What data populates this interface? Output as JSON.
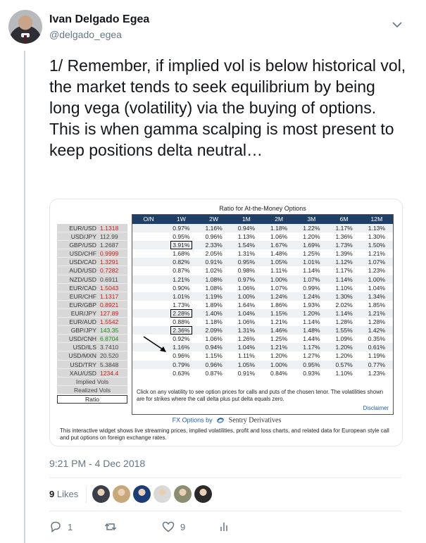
{
  "author": {
    "name": "Ivan Delgado Egea",
    "handle": "@delgado_egea"
  },
  "tweet_text": "1/ Remember, if implied vol is below historical vol, the market tends to seek equilibrium by being long vega (volatility) via the buying of options. This is when gamma scalping is most present to keep positions delta neutral…",
  "widget": {
    "title": "Ratio for At-the-Money Options",
    "headers": [
      "O/N",
      "1W",
      "2W",
      "1M",
      "2M",
      "3M",
      "6M",
      "12M"
    ],
    "pairs": [
      {
        "pair": "EUR/USD",
        "price": "1.1318",
        "color": "red"
      },
      {
        "pair": "USD/JPY",
        "price": "112.99",
        "color": "gray"
      },
      {
        "pair": "GBP/USD",
        "price": "1.2687",
        "color": "gray"
      },
      {
        "pair": "USD/CHF",
        "price": "0.9999",
        "color": "red"
      },
      {
        "pair": "USD/CAD",
        "price": "1.3291",
        "color": "red"
      },
      {
        "pair": "AUD/USD",
        "price": "0.7282",
        "color": "red"
      },
      {
        "pair": "NZD/USD",
        "price": "0.6911",
        "color": "gray"
      },
      {
        "pair": "EUR/CAD",
        "price": "1.5043",
        "color": "red"
      },
      {
        "pair": "EUR/CHF",
        "price": "1.1317",
        "color": "red"
      },
      {
        "pair": "EUR/GBP",
        "price": "0.8921",
        "color": "red"
      },
      {
        "pair": "EUR/JPY",
        "price": "127.89",
        "color": "red"
      },
      {
        "pair": "EUR/AUD",
        "price": "1.5542",
        "color": "red"
      },
      {
        "pair": "GBP/JPY",
        "price": "143.35",
        "color": "grn"
      },
      {
        "pair": "USD/CNH",
        "price": "6.8704",
        "color": "grn"
      },
      {
        "pair": "USD/ILS",
        "price": "3.7410",
        "color": "gray"
      },
      {
        "pair": "USD/MXN",
        "price": "20.520",
        "color": "gray"
      },
      {
        "pair": "USD/TRY",
        "price": "5.3848",
        "color": "gray"
      },
      {
        "pair": "XAU/USD",
        "price": "1234.4",
        "color": "red"
      }
    ],
    "rows": [
      [
        "",
        "0.97%",
        "1.16%",
        "0.94%",
        "1.18%",
        "1.22%",
        "1.17%",
        "1.13%"
      ],
      [
        "",
        "0.95%",
        "0.96%",
        "1.13%",
        "1.06%",
        "1.20%",
        "1.36%",
        "1.30%"
      ],
      [
        "",
        "3.91%",
        "2.33%",
        "1.54%",
        "1.67%",
        "1.69%",
        "1.73%",
        "1.50%"
      ],
      [
        "",
        "1.68%",
        "2.05%",
        "1.31%",
        "1.48%",
        "1.25%",
        "1.39%",
        "1.21%"
      ],
      [
        "",
        "0.82%",
        "0.91%",
        "0.95%",
        "1.05%",
        "1.01%",
        "1.12%",
        "1.07%"
      ],
      [
        "",
        "0.87%",
        "1.02%",
        "0.98%",
        "1.11%",
        "1.14%",
        "1.17%",
        "1.23%"
      ],
      [
        "",
        "1.21%",
        "1.08%",
        "0.97%",
        "1.00%",
        "1.07%",
        "1.14%",
        "1.00%"
      ],
      [
        "",
        "0.90%",
        "1.08%",
        "1.06%",
        "1.07%",
        "0.99%",
        "1.10%",
        "1.04%"
      ],
      [
        "",
        "1.01%",
        "1.19%",
        "1.00%",
        "1.24%",
        "1.24%",
        "1.30%",
        "1.34%"
      ],
      [
        "",
        "1.73%",
        "1.89%",
        "1.64%",
        "1.86%",
        "1.93%",
        "2.02%",
        "1.85%"
      ],
      [
        "",
        "2.28%",
        "1.40%",
        "1.04%",
        "1.15%",
        "1.20%",
        "1.14%",
        "1.21%"
      ],
      [
        "",
        "0.88%",
        "1.18%",
        "1.06%",
        "1.21%",
        "1.14%",
        "1.28%",
        "1.28%"
      ],
      [
        "",
        "2.36%",
        "2.09%",
        "1.31%",
        "1.46%",
        "1.48%",
        "1.55%",
        "1.42%"
      ],
      [
        "",
        "0.92%",
        "1.06%",
        "1.26%",
        "1.25%",
        "1.44%",
        "1.09%",
        "0.35%"
      ],
      [
        "",
        "1.16%",
        "0.94%",
        "1.04%",
        "1.21%",
        "1.17%",
        "1.20%",
        "0.61%"
      ],
      [
        "",
        "0.96%",
        "1.15%",
        "1.11%",
        "1.20%",
        "1.27%",
        "1.20%",
        "1.19%"
      ],
      [
        "",
        "0.79%",
        "0.96%",
        "1.05%",
        "1.00%",
        "0.95%",
        "0.57%",
        "0.77%"
      ],
      [
        "",
        "0.63%",
        "0.87%",
        "0.91%",
        "0.84%",
        "0.93%",
        "1.10%",
        "1.23%"
      ]
    ],
    "boxed_cells": [
      [
        2,
        1
      ],
      [
        10,
        1
      ],
      [
        12,
        1
      ]
    ],
    "implied_label": "Implied Vols",
    "realized_label": "Realized Vols",
    "ratio_label": "Ratio",
    "note": "Click on any volatility to see option prices for calls and puts of the chosen tenor. The volatilities shown are for strikes where the call delta plus put delta equals zero.",
    "disclaimer": "Disclaimer",
    "fx_options_label": "FX Options by",
    "sentry_label": "Sentry Derivatives",
    "description": "This interactive widget shows live streaming prices, implied volatilities, profit and loss charts, and related data for European style call and put options on foreign exchange rates."
  },
  "timestamp": "9:21 PM - 4 Dec 2018",
  "likes": {
    "count": "9",
    "label": "Likes"
  },
  "liker_avatar_colors": [
    "#3a3f4a",
    "#c8a87a",
    "#1c3c78",
    "#d9d9d9",
    "#8c8c70",
    "#2a2a2a"
  ],
  "actions": {
    "replies": "1",
    "retweets": "",
    "likes": "9"
  },
  "colors": {
    "secondary_text": "#657786",
    "header_blue": "#1f3f66",
    "link_blue": "#1f5fa8"
  }
}
